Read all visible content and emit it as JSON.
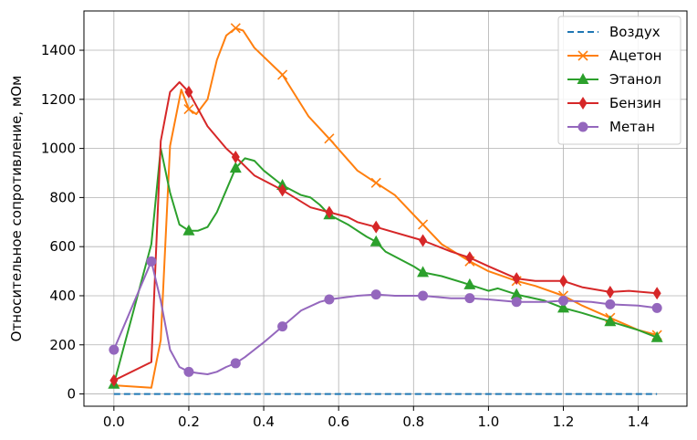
{
  "chart_data": {
    "type": "line",
    "title": "",
    "xlabel": "",
    "ylabel": "Относительное сопротивление, мОм",
    "xlim": [
      -0.08,
      1.53
    ],
    "ylim": [
      -50,
      1560
    ],
    "x_ticks": [
      0.0,
      0.2,
      0.4,
      0.6,
      0.8,
      1.0,
      1.2,
      1.4
    ],
    "x_tick_labels": [
      "0.0",
      "0.2",
      "0.4",
      "0.6",
      "0.8",
      "1.0",
      "1.2",
      "1.4"
    ],
    "y_ticks": [
      0,
      200,
      400,
      600,
      800,
      1000,
      1200,
      1400
    ],
    "y_tick_labels": [
      "0",
      "200",
      "400",
      "600",
      "800",
      "1000",
      "1200",
      "1400"
    ],
    "grid": true,
    "legend_position": "top-right",
    "series": [
      {
        "name": "Воздух",
        "color": "#1f77b4",
        "linestyle": "dashed",
        "marker": "none",
        "x": [
          0.0,
          1.45
        ],
        "y": [
          0,
          0
        ],
        "marker_x": [],
        "marker_y": []
      },
      {
        "name": "Ацетон",
        "color": "#ff7f0e",
        "linestyle": "solid",
        "marker": "x",
        "x": [
          0.0,
          0.1,
          0.125,
          0.15,
          0.18,
          0.2,
          0.22,
          0.25,
          0.275,
          0.3,
          0.325,
          0.345,
          0.375,
          0.45,
          0.52,
          0.575,
          0.65,
          0.7,
          0.75,
          0.825,
          0.875,
          0.95,
          1.0,
          1.075,
          1.125,
          1.2,
          1.25,
          1.325,
          1.4,
          1.45
        ],
        "y": [
          35,
          25,
          220,
          1010,
          1240,
          1160,
          1140,
          1200,
          1360,
          1460,
          1490,
          1480,
          1410,
          1300,
          1130,
          1040,
          910,
          860,
          810,
          690,
          610,
          540,
          500,
          460,
          440,
          400,
          360,
          310,
          260,
          240
        ],
        "marker_x": [
          0.2,
          0.325,
          0.45,
          0.575,
          0.7,
          0.825,
          0.95,
          1.075,
          1.2,
          1.325,
          1.45
        ],
        "marker_y": [
          1160,
          1490,
          1300,
          1040,
          860,
          690,
          540,
          460,
          400,
          310,
          240
        ]
      },
      {
        "name": "Этанол",
        "color": "#2ca02c",
        "linestyle": "solid",
        "marker": "^",
        "x": [
          0.0,
          0.1,
          0.125,
          0.15,
          0.175,
          0.2,
          0.225,
          0.25,
          0.275,
          0.3,
          0.325,
          0.35,
          0.375,
          0.4,
          0.45,
          0.5,
          0.525,
          0.55,
          0.575,
          0.625,
          0.675,
          0.7,
          0.725,
          0.8,
          0.825,
          0.875,
          0.95,
          1.0,
          1.025,
          1.075,
          1.15,
          1.2,
          1.25,
          1.325,
          1.4,
          1.45
        ],
        "y": [
          40,
          610,
          1000,
          820,
          690,
          665,
          665,
          680,
          740,
          830,
          920,
          960,
          950,
          910,
          850,
          810,
          800,
          770,
          730,
          690,
          640,
          620,
          580,
          520,
          495,
          480,
          445,
          420,
          430,
          405,
          380,
          350,
          330,
          295,
          260,
          230
        ],
        "marker_x": [
          0.0,
          0.2,
          0.325,
          0.45,
          0.575,
          0.7,
          0.825,
          0.95,
          1.075,
          1.2,
          1.325,
          1.45
        ],
        "marker_y": [
          40,
          665,
          920,
          850,
          730,
          620,
          495,
          445,
          405,
          350,
          295,
          230
        ]
      },
      {
        "name": "Бензин",
        "color": "#d62728",
        "linestyle": "solid",
        "marker": "d",
        "x": [
          0.0,
          0.1,
          0.125,
          0.15,
          0.175,
          0.2,
          0.25,
          0.3,
          0.325,
          0.375,
          0.45,
          0.525,
          0.575,
          0.625,
          0.65,
          0.7,
          0.825,
          0.9,
          0.95,
          1.0,
          1.075,
          1.125,
          1.2,
          1.25,
          1.325,
          1.375,
          1.45
        ],
        "y": [
          55,
          130,
          1030,
          1230,
          1270,
          1230,
          1090,
          1000,
          965,
          890,
          830,
          760,
          740,
          720,
          700,
          680,
          625,
          580,
          555,
          520,
          470,
          460,
          460,
          435,
          415,
          420,
          410
        ],
        "marker_x": [
          0.0,
          0.2,
          0.325,
          0.45,
          0.575,
          0.7,
          0.825,
          0.95,
          1.075,
          1.2,
          1.325,
          1.45
        ],
        "marker_y": [
          55,
          1230,
          965,
          830,
          740,
          680,
          625,
          555,
          470,
          460,
          415,
          410
        ]
      },
      {
        "name": "Метан",
        "color": "#9467bd",
        "linestyle": "solid",
        "marker": "o",
        "x": [
          0.0,
          0.1,
          0.125,
          0.15,
          0.175,
          0.2,
          0.225,
          0.25,
          0.275,
          0.3,
          0.325,
          0.35,
          0.375,
          0.4,
          0.45,
          0.5,
          0.55,
          0.575,
          0.65,
          0.7,
          0.75,
          0.825,
          0.9,
          0.95,
          1.0,
          1.075,
          1.15,
          1.2,
          1.275,
          1.325,
          1.4,
          1.45
        ],
        "y": [
          180,
          540,
          380,
          180,
          110,
          90,
          85,
          80,
          90,
          110,
          125,
          150,
          180,
          210,
          275,
          340,
          375,
          385,
          400,
          405,
          400,
          400,
          390,
          390,
          385,
          375,
          375,
          380,
          375,
          365,
          360,
          350
        ],
        "marker_x": [
          0.0,
          0.1,
          0.2,
          0.325,
          0.45,
          0.575,
          0.7,
          0.825,
          0.95,
          1.075,
          1.2,
          1.325,
          1.45
        ],
        "marker_y": [
          180,
          540,
          90,
          125,
          275,
          385,
          405,
          400,
          390,
          375,
          380,
          365,
          350
        ]
      }
    ]
  }
}
